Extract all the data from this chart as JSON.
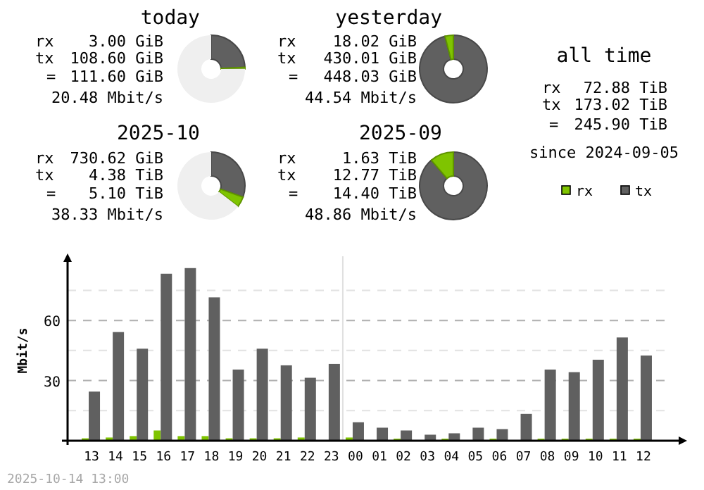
{
  "chart_data": [
    {
      "type": "donut",
      "title": "today",
      "categories": [
        null,
        null,
        null
      ],
      "values": [
        0.7,
        24.2,
        75.1
      ],
      "colors": [
        "#7fc400",
        "#606060",
        "#efefef"
      ],
      "annotations": [
        "rx",
        "3.00 GiB",
        "tx",
        "108.60 GiB",
        "=",
        "111.60 GiB",
        "20.48 Mbit/s"
      ]
    },
    {
      "type": "donut",
      "title": "yesterday",
      "categories": [
        null,
        null
      ],
      "values": [
        4.0,
        96.0
      ],
      "colors": [
        "#7fc400",
        "#606060"
      ],
      "annotations": [
        "rx",
        "18.02 GiB",
        "tx",
        "430.01 GiB",
        "=",
        "448.03 GiB",
        "44.54 Mbit/s"
      ]
    },
    {
      "type": "other",
      "title": "all time",
      "annotations": [
        "rx",
        "72.88 TiB",
        "tx",
        "173.02 TiB",
        "=",
        "245.90 TiB",
        "since 2024-09-05"
      ]
    },
    {
      "type": "donut",
      "title": "2025-10",
      "categories": [
        null,
        null,
        null
      ],
      "values": [
        5.0,
        30.4,
        64.6
      ],
      "colors": [
        "#7fc400",
        "#606060",
        "#efefef"
      ],
      "annotations": [
        "rx",
        "730.62 GiB",
        "tx",
        "4.38 TiB",
        "=",
        "5.10 TiB",
        "38.33 Mbit/s"
      ]
    },
    {
      "type": "donut",
      "title": "2025-09",
      "categories": [
        null,
        null
      ],
      "values": [
        11.3,
        88.7
      ],
      "colors": [
        "#7fc400",
        "#606060"
      ],
      "annotations": [
        "rx",
        "1.63 TiB",
        "tx",
        "12.77 TiB",
        "=",
        "14.40 TiB",
        "48.86 Mbit/s"
      ]
    },
    {
      "type": "bar",
      "ylabel": "Mbit/s",
      "categories": [
        "13",
        "14",
        "15",
        "16",
        "17",
        "18",
        "19",
        "20",
        "21",
        "22",
        "23",
        "00",
        "01",
        "02",
        "03",
        "04",
        "05",
        "06",
        "07",
        "08",
        "09",
        "10",
        "11",
        "12"
      ],
      "series": [
        {
          "name": "rx",
          "color": "#7fc400",
          "values": [
            1.2,
            1.6,
            2.3,
            5.1,
            2.3,
            2.3,
            1.2,
            1.2,
            1.2,
            1.6,
            0.3,
            1.6,
            0.3,
            1.0,
            0.3,
            1.0,
            0.3,
            1.0,
            0.3,
            1.0,
            1.0,
            1.0,
            1.0,
            1.0
          ]
        },
        {
          "name": "tx",
          "color": "#606060",
          "values": [
            24.5,
            54.2,
            45.9,
            83.3,
            86.1,
            71.5,
            35.5,
            45.9,
            37.6,
            31.4,
            38.3,
            9.2,
            6.5,
            5.1,
            3.0,
            3.7,
            6.5,
            5.8,
            13.4,
            35.5,
            34.2,
            40.4,
            51.5,
            42.5
          ]
        }
      ],
      "ylim": [
        0,
        92
      ],
      "yticks": [
        {
          "value": 0,
          "label": null
        },
        {
          "value": 15,
          "label": null
        },
        30,
        {
          "value": 45,
          "label": null
        },
        60,
        {
          "value": 75,
          "label": null
        }
      ],
      "grid": "y",
      "legend": "top right",
      "ref_lines": [
        {
          "axis": "x",
          "value": "00",
          "color": "#e0e0e0"
        }
      ],
      "annotations": [
        "2025-10-14 13:00"
      ]
    }
  ]
}
